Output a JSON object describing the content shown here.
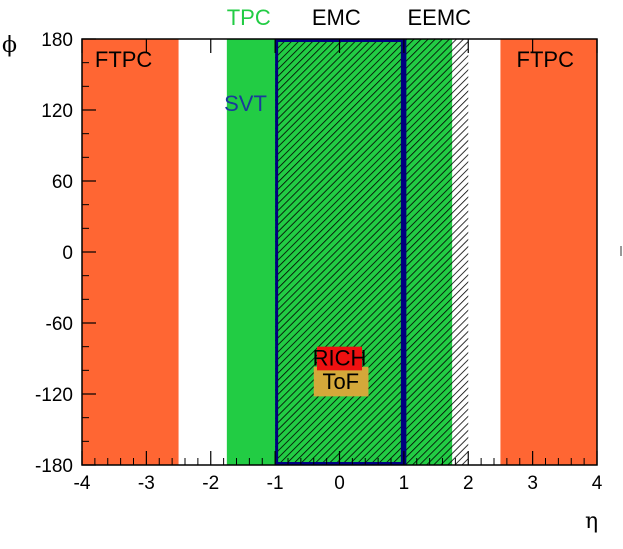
{
  "chart_data": {
    "type": "region",
    "title": "",
    "xlabel": "η",
    "ylabel": "ϕ",
    "xlim": [
      -4,
      4
    ],
    "ylim": [
      -180,
      180
    ],
    "xticks": [
      -4,
      -3,
      -2,
      -1,
      0,
      1,
      2,
      3,
      4
    ],
    "yticks": [
      180,
      120,
      60,
      0,
      -60,
      -120,
      -180
    ],
    "regions": [
      {
        "name": "FTPC",
        "eta": [
          -4.0,
          -2.5
        ],
        "phi": [
          -180,
          180
        ],
        "fill": "#ff6633",
        "pattern": "none",
        "label": "FTPC",
        "label_color": "#000000"
      },
      {
        "name": "FTPC",
        "eta": [
          2.5,
          4.0
        ],
        "phi": [
          -180,
          180
        ],
        "fill": "#ff6633",
        "pattern": "none",
        "label": "FTPC",
        "label_color": "#000000"
      },
      {
        "name": "TPC",
        "eta": [
          -1.75,
          1.75
        ],
        "phi": [
          -180,
          180
        ],
        "fill": "#22cc44",
        "pattern": "none",
        "label": "TPC",
        "label_color": "#22cc44"
      },
      {
        "name": "SVT",
        "eta": [
          -1.0,
          1.0
        ],
        "phi": [
          -180,
          180
        ],
        "fill": "none",
        "border": "#000080",
        "pattern": "none",
        "label": "SVT",
        "label_color": "#1a3a9a"
      },
      {
        "name": "EMC",
        "eta": [
          -1.0,
          1.0
        ],
        "phi": [
          -180,
          180
        ],
        "fill": "none",
        "pattern": "hatch",
        "label": "EMC",
        "label_color": "#000000"
      },
      {
        "name": "EEMC",
        "eta": [
          1.0,
          2.0
        ],
        "phi": [
          -180,
          180
        ],
        "fill": "none",
        "pattern": "hatch",
        "label": "EEMC",
        "label_color": "#000000"
      },
      {
        "name": "RICH",
        "eta": [
          -0.35,
          0.35
        ],
        "phi": [
          -100,
          -80
        ],
        "fill": "#ee1111",
        "pattern": "none",
        "label": "RICH",
        "label_color": "#000000"
      },
      {
        "name": "ToF",
        "eta": [
          -0.4,
          0.45
        ],
        "phi": [
          -122,
          -97
        ],
        "fill": "#d4a83a",
        "pattern": "none",
        "label": "ToF",
        "label_color": "#000000"
      }
    ]
  }
}
